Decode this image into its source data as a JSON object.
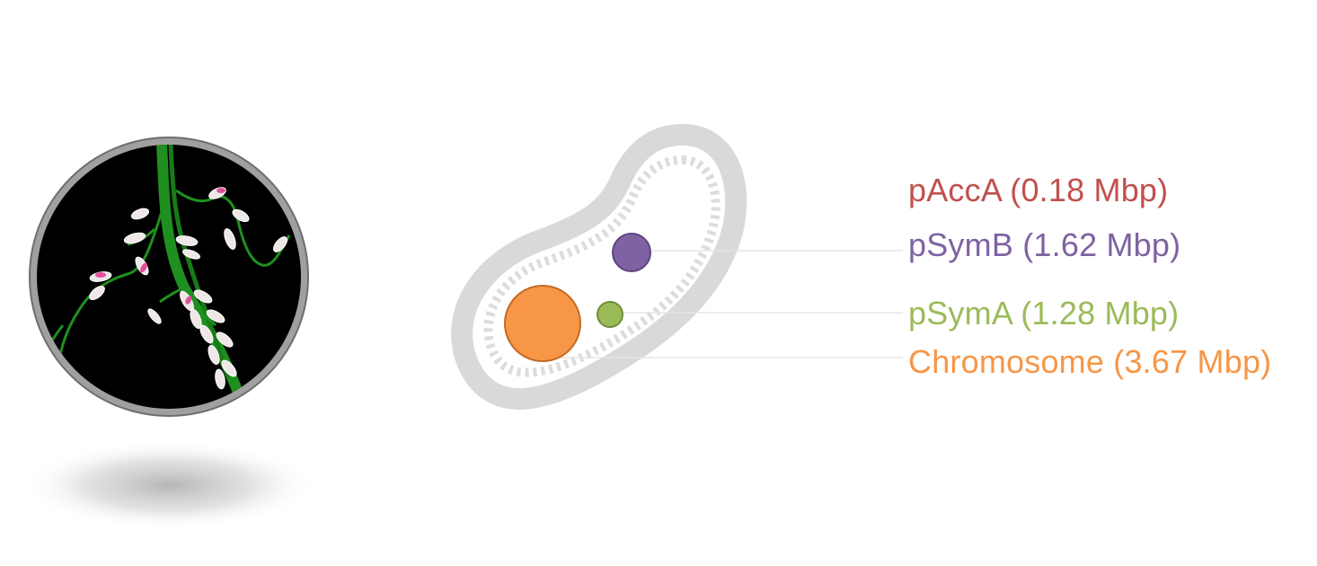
{
  "replicons": [
    {
      "key": "paccA",
      "label": "pAccA (0.18 Mbp)",
      "color": "#c0504d"
    },
    {
      "key": "psymB",
      "label": "pSymB (1.62 Mbp)",
      "color": "#7e62a2"
    },
    {
      "key": "psymA",
      "label": "pSymA (1.28 Mbp)",
      "color": "#9bbb59"
    },
    {
      "key": "chromosome",
      "label": "Chromosome (3.67 Mbp)",
      "color": "#f79646"
    }
  ],
  "colors": {
    "lens_frame": "#9a9a9a",
    "lens_background": "#000000",
    "root": "#1e8a1e",
    "nodule": "#f2eaea",
    "nodule_tip": "#e0509a",
    "cell_wall": "#d9d9d9",
    "leader_line": "#e6e6e6"
  }
}
